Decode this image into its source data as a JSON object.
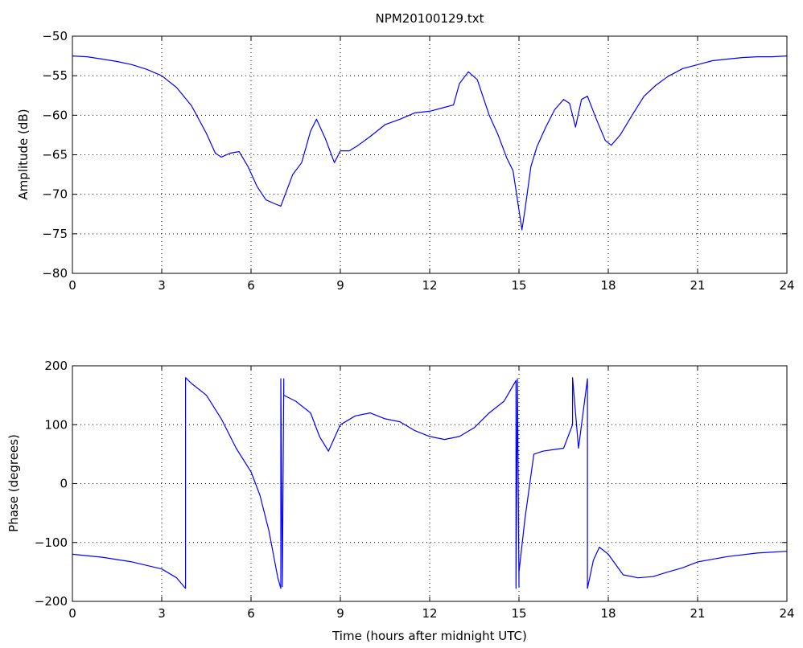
{
  "chart_data": [
    {
      "type": "line",
      "title": "NPM20100129.txt",
      "xlabel": "",
      "ylabel": "Amplitude (dB)",
      "xlim": [
        0,
        24
      ],
      "ylim": [
        -80,
        -50
      ],
      "xticks": [
        "0",
        "3",
        "6",
        "9",
        "12",
        "15",
        "18",
        "21",
        "24"
      ],
      "yticks": [
        "−80",
        "−75",
        "−70",
        "−65",
        "−60",
        "−55",
        "−50"
      ],
      "grid": true,
      "line_color": "#0000ff",
      "series": [
        {
          "x": [
            0,
            0.5,
            1,
            1.5,
            2,
            2.5,
            3,
            3.5,
            4,
            4.5,
            4.8,
            5.0,
            5.3,
            5.6,
            5.9,
            6.2,
            6.5,
            6.8,
            7.0,
            7.2,
            7.4,
            7.7,
            8.0,
            8.2,
            8.5,
            8.8,
            9.0,
            9.3,
            9.6,
            10.0,
            10.5,
            11.0,
            11.5,
            12.0,
            12.5,
            12.8,
            13.0,
            13.3,
            13.6,
            14.0,
            14.3,
            14.6,
            14.8,
            15.0,
            15.1,
            15.2,
            15.4,
            15.6,
            15.9,
            16.2,
            16.5,
            16.7,
            16.9,
            17.1,
            17.3,
            17.6,
            17.9,
            18.1,
            18.4,
            18.8,
            19.2,
            19.6,
            20.0,
            20.5,
            21.0,
            21.5,
            22.0,
            22.5,
            23.0,
            23.5,
            24.0
          ],
          "values": [
            -52.5,
            -52.6,
            -52.9,
            -53.2,
            -53.6,
            -54.2,
            -55.0,
            -56.5,
            -58.8,
            -62.3,
            -64.8,
            -65.3,
            -64.8,
            -64.6,
            -66.5,
            -69.0,
            -70.7,
            -71.2,
            -71.5,
            -69.5,
            -67.5,
            -66.0,
            -62.0,
            -60.5,
            -63.0,
            -66.0,
            -64.5,
            -64.5,
            -63.8,
            -62.7,
            -61.2,
            -60.5,
            -59.7,
            -59.5,
            -59.0,
            -58.7,
            -56.0,
            -54.5,
            -55.5,
            -60.0,
            -62.5,
            -65.5,
            -67.0,
            -72.0,
            -74.5,
            -72.0,
            -66.5,
            -64.0,
            -61.5,
            -59.3,
            -58.0,
            -58.5,
            -61.5,
            -58.0,
            -57.6,
            -60.5,
            -63.2,
            -63.8,
            -62.5,
            -60.0,
            -57.6,
            -56.2,
            -55.1,
            -54.1,
            -53.6,
            -53.1,
            -52.9,
            -52.7,
            -52.6,
            -52.6,
            -52.5
          ]
        }
      ]
    },
    {
      "type": "line",
      "title": "",
      "xlabel": "Time (hours after midnight UTC)",
      "ylabel": "Phase (degrees)",
      "xlim": [
        0,
        24
      ],
      "ylim": [
        -200,
        200
      ],
      "xticks": [
        "0",
        "3",
        "6",
        "9",
        "12",
        "15",
        "18",
        "21",
        "24"
      ],
      "yticks": [
        "−200",
        "−100",
        "0",
        "100",
        "200"
      ],
      "grid": true,
      "line_color": "#0000ff",
      "series": [
        {
          "x": [
            0,
            1,
            2,
            3,
            3.5,
            3.8,
            3.8,
            4.0,
            4.5,
            5.0,
            5.5,
            6.0,
            6.3,
            6.6,
            6.9,
            7.0,
            7.0,
            7.05,
            7.1,
            7.1,
            7.5,
            8.0,
            8.3,
            8.6,
            9.0,
            9.5,
            10.0,
            10.5,
            11.0,
            11.5,
            12.0,
            12.5,
            13.0,
            13.5,
            14.0,
            14.5,
            14.9,
            14.9,
            14.95,
            15.0,
            15.0,
            15.2,
            15.5,
            15.8,
            16.2,
            16.5,
            16.8,
            16.8,
            17.0,
            17.3,
            17.3,
            17.5,
            17.7,
            18.0,
            18.5,
            19.0,
            19.5,
            20.0,
            20.5,
            21.0,
            22.0,
            23.0,
            24.0
          ],
          "values": [
            -120,
            -125,
            -133,
            -145,
            -160,
            -178,
            180,
            170,
            150,
            110,
            60,
            20,
            -20,
            -80,
            -160,
            -178,
            178,
            -175,
            178,
            150,
            140,
            120,
            80,
            55,
            100,
            115,
            120,
            110,
            105,
            90,
            80,
            75,
            80,
            95,
            120,
            140,
            175,
            -178,
            178,
            -175,
            -150,
            -60,
            50,
            55,
            58,
            60,
            100,
            180,
            60,
            178,
            -178,
            -130,
            -108,
            -120,
            -155,
            -160,
            -158,
            -150,
            -143,
            -133,
            -124,
            -118,
            -115
          ]
        }
      ]
    }
  ]
}
